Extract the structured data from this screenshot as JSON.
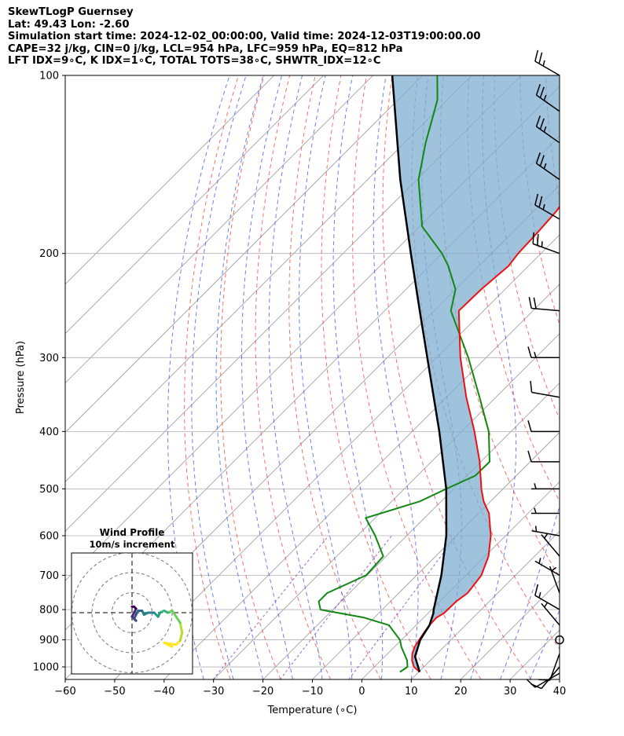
{
  "header": {
    "title": "SkewTLogP Guernsey",
    "location": "Lat: 49.43   Lon: -2.60",
    "times": "Simulation start time: 2024-12-02_00:00:00, Valid time: 2024-12-03T19:00:00.00",
    "indices1": "CAPE=32 j/kg, CIN=0 j/kg, LCL=954 hPa, LFC=959 hPa, EQ=812 hPa",
    "indices2": "LFT IDX=9∘C, K IDX=1∘C, TOTAL TOTS=38∘C, SHWTR_IDX=12∘C"
  },
  "chart_data": {
    "type": "skewt-logp",
    "xlabel": "Temperature (∘C)",
    "ylabel": "Pressure (hPa)",
    "xlim": [
      -60,
      40
    ],
    "ylim": [
      1050,
      100
    ],
    "x_ticks": [
      -60,
      -50,
      -40,
      -30,
      -20,
      -10,
      0,
      10,
      20,
      30,
      40
    ],
    "y_ticks": [
      100,
      200,
      300,
      400,
      500,
      600,
      700,
      800,
      900,
      1000
    ],
    "y_scale": "log",
    "grid": true,
    "colors": {
      "temperature": "#ee1111",
      "dewpoint": "#118811",
      "parcel": "#000000",
      "cape_fill": "#7faed2",
      "dry_adiabat": "#ee3333",
      "moist_adiabat": "#3344ee",
      "mixing_ratio": "#8833cc",
      "isotherm": "#999999"
    },
    "temperature": [
      {
        "p": 1020,
        "t": 10.2
      },
      {
        "p": 1000,
        "t": 8.0
      },
      {
        "p": 975,
        "t": 6.3
      },
      {
        "p": 950,
        "t": 5.0
      },
      {
        "p": 925,
        "t": 4.1
      },
      {
        "p": 900,
        "t": 3.6
      },
      {
        "p": 875,
        "t": 3.1
      },
      {
        "p": 850,
        "t": 2.7
      },
      {
        "p": 825,
        "t": 2.6
      },
      {
        "p": 812,
        "t": 3.2
      },
      {
        "p": 775,
        "t": 3.3
      },
      {
        "p": 750,
        "t": 3.9
      },
      {
        "p": 700,
        "t": 3.1
      },
      {
        "p": 650,
        "t": 0.7
      },
      {
        "p": 600,
        "t": -3.0
      },
      {
        "p": 550,
        "t": -7.9
      },
      {
        "p": 525,
        "t": -11.4
      },
      {
        "p": 500,
        "t": -14.4
      },
      {
        "p": 450,
        "t": -20.2
      },
      {
        "p": 400,
        "t": -27.4
      },
      {
        "p": 350,
        "t": -36.0
      },
      {
        "p": 300,
        "t": -45.2
      },
      {
        "p": 250,
        "t": -55.0
      },
      {
        "p": 230,
        "t": -54.8
      },
      {
        "p": 210,
        "t": -54.0
      },
      {
        "p": 200,
        "t": -54.6
      },
      {
        "p": 185,
        "t": -54.9
      },
      {
        "p": 170,
        "t": -55.4
      },
      {
        "p": 150,
        "t": -57.0
      },
      {
        "p": 130,
        "t": -59.7
      },
      {
        "p": 110,
        "t": -62.2
      },
      {
        "p": 100,
        "t": -63.8
      }
    ],
    "dewpoint": [
      {
        "p": 1020,
        "t": 6.2
      },
      {
        "p": 1000,
        "t": 6.7
      },
      {
        "p": 975,
        "t": 5.3
      },
      {
        "p": 925,
        "t": 1.4
      },
      {
        "p": 900,
        "t": -0.3
      },
      {
        "p": 850,
        "t": -5.5
      },
      {
        "p": 825,
        "t": -12.2
      },
      {
        "p": 800,
        "t": -22.5
      },
      {
        "p": 775,
        "t": -24.5
      },
      {
        "p": 750,
        "t": -24.5
      },
      {
        "p": 700,
        "t": -20.2
      },
      {
        "p": 650,
        "t": -20.6
      },
      {
        "p": 600,
        "t": -26.4
      },
      {
        "p": 560,
        "t": -31.9
      },
      {
        "p": 525,
        "t": -24.3
      },
      {
        "p": 500,
        "t": -21.5
      },
      {
        "p": 475,
        "t": -18.3
      },
      {
        "p": 450,
        "t": -18.2
      },
      {
        "p": 400,
        "t": -24.5
      },
      {
        "p": 350,
        "t": -33.3
      },
      {
        "p": 300,
        "t": -43.6
      },
      {
        "p": 250,
        "t": -56.6
      },
      {
        "p": 230,
        "t": -60.0
      },
      {
        "p": 210,
        "t": -66.2
      },
      {
        "p": 200,
        "t": -70.0
      },
      {
        "p": 180,
        "t": -79.5
      },
      {
        "p": 150,
        "t": -89.7
      },
      {
        "p": 130,
        "t": -95.7
      },
      {
        "p": 110,
        "t": -102.0
      },
      {
        "p": 100,
        "t": -107.0
      }
    ],
    "parcel": [
      {
        "p": 1020,
        "t": 10.2
      },
      {
        "p": 960,
        "t": 6.1
      },
      {
        "p": 900,
        "t": 3.8
      },
      {
        "p": 850,
        "t": 2.7
      },
      {
        "p": 812,
        "t": 1.1
      },
      {
        "p": 800,
        "t": 0.4
      },
      {
        "p": 700,
        "t": -5.0
      },
      {
        "p": 600,
        "t": -12.0
      },
      {
        "p": 500,
        "t": -21.5
      },
      {
        "p": 400,
        "t": -34.5
      },
      {
        "p": 300,
        "t": -51.9
      },
      {
        "p": 250,
        "t": -62.9
      },
      {
        "p": 200,
        "t": -76.3
      },
      {
        "p": 150,
        "t": -93.4
      },
      {
        "p": 100,
        "t": -116.1
      }
    ],
    "wind_barbs": [
      {
        "p": 1025,
        "speed_kt": 10,
        "dir_deg": 240
      },
      {
        "p": 1000,
        "speed_kt": 10,
        "dir_deg": 220
      },
      {
        "p": 950,
        "speed_kt": 10,
        "dir_deg": 200
      },
      {
        "p": 900,
        "speed_kt": 0,
        "dir_deg": 0
      },
      {
        "p": 850,
        "speed_kt": 5,
        "dir_deg": 320
      },
      {
        "p": 800,
        "speed_kt": 15,
        "dir_deg": 300
      },
      {
        "p": 750,
        "speed_kt": 5,
        "dir_deg": 340
      },
      {
        "p": 700,
        "speed_kt": 5,
        "dir_deg": 300
      },
      {
        "p": 650,
        "speed_kt": 5,
        "dir_deg": 320
      },
      {
        "p": 600,
        "speed_kt": 5,
        "dir_deg": 280
      },
      {
        "p": 550,
        "speed_kt": 5,
        "dir_deg": 270
      },
      {
        "p": 500,
        "speed_kt": 5,
        "dir_deg": 270
      },
      {
        "p": 450,
        "speed_kt": 10,
        "dir_deg": 270
      },
      {
        "p": 400,
        "speed_kt": 10,
        "dir_deg": 270
      },
      {
        "p": 350,
        "speed_kt": 10,
        "dir_deg": 280
      },
      {
        "p": 300,
        "speed_kt": 15,
        "dir_deg": 270
      },
      {
        "p": 250,
        "speed_kt": 20,
        "dir_deg": 275
      },
      {
        "p": 200,
        "speed_kt": 25,
        "dir_deg": 290
      },
      {
        "p": 175,
        "speed_kt": 25,
        "dir_deg": 300
      },
      {
        "p": 150,
        "speed_kt": 25,
        "dir_deg": 305
      },
      {
        "p": 130,
        "speed_kt": 25,
        "dir_deg": 305
      },
      {
        "p": 115,
        "speed_kt": 25,
        "dir_deg": 305
      },
      {
        "p": 100,
        "speed_kt": 25,
        "dir_deg": 300
      }
    ],
    "hodograph": {
      "title": "Wind Profile",
      "subtitle": "10m/s increment",
      "rings_ms": [
        10,
        20,
        30
      ],
      "points_uv": [
        [
          20,
          -17
        ],
        [
          16,
          -15
        ],
        [
          22,
          -16
        ],
        [
          24,
          -14
        ],
        [
          25,
          -10
        ],
        [
          24,
          -5
        ],
        [
          22,
          -2
        ],
        [
          20,
          1
        ],
        [
          18,
          0
        ],
        [
          16,
          1
        ],
        [
          14,
          0
        ],
        [
          13,
          -2
        ],
        [
          11,
          0
        ],
        [
          8,
          0
        ],
        [
          6,
          -1
        ],
        [
          5,
          1
        ],
        [
          3,
          1
        ],
        [
          2,
          -1
        ],
        [
          1,
          -3
        ],
        [
          2,
          -4
        ],
        [
          0,
          -2
        ],
        [
          1,
          0
        ],
        [
          2,
          2
        ],
        [
          1,
          3
        ],
        [
          0,
          3
        ]
      ]
    }
  }
}
